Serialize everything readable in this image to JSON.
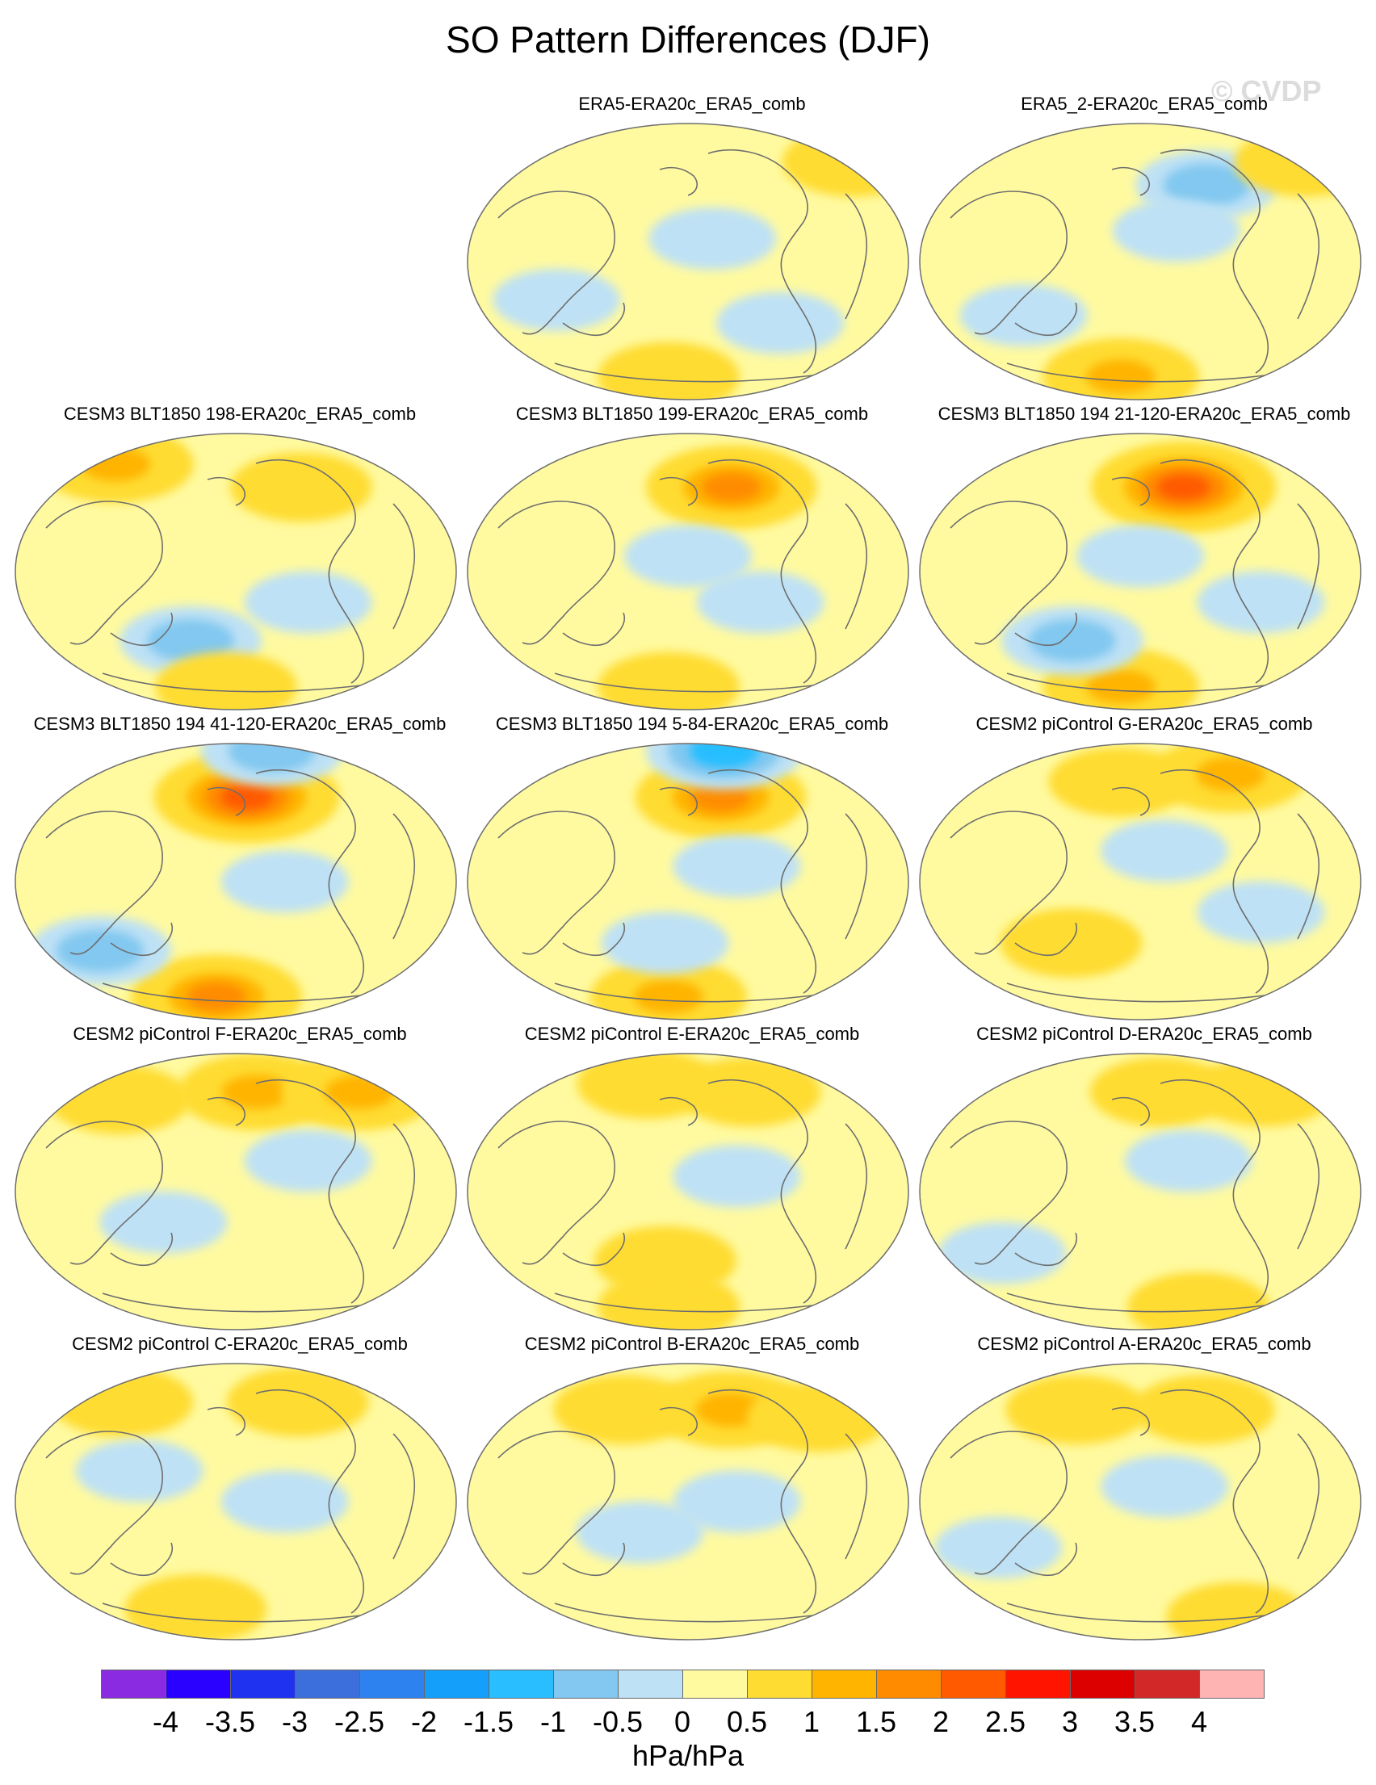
{
  "title": "SO Pattern Differences (DJF)",
  "watermark": "© CVDP",
  "colors": {
    "land_outline": "#6e6e6e",
    "map_border": "#6e6e6e"
  },
  "panels": [
    {
      "title": "ERA5-ERA20c_ERA5_comb",
      "blobs": [
        {
          "lon": 160,
          "lat": 65,
          "v": 1
        },
        {
          "lon": -20,
          "lat": -75,
          "v": 1
        },
        {
          "lon": 20,
          "lat": 15,
          "v": -0.5
        },
        {
          "lon": -110,
          "lat": -25,
          "v": -0.5
        },
        {
          "lon": 80,
          "lat": -40,
          "v": -0.5
        }
      ]
    },
    {
      "title": "ERA5_2-ERA20c_ERA5_comb",
      "blobs": [
        {
          "lon": 60,
          "lat": 50,
          "v": -1
        },
        {
          "lon": 160,
          "lat": 65,
          "v": 1
        },
        {
          "lon": -20,
          "lat": -75,
          "v": 1.5
        },
        {
          "lon": 30,
          "lat": 20,
          "v": -0.5
        },
        {
          "lon": -100,
          "lat": -35,
          "v": -0.5
        }
      ]
    },
    {
      "title": "CESM3 BLT1850 198-ERA20c_ERA5_comb",
      "blobs": [
        {
          "lon": -120,
          "lat": 70,
          "v": 1.5
        },
        {
          "lon": 60,
          "lat": 55,
          "v": 1
        },
        {
          "lon": -40,
          "lat": -45,
          "v": -1
        },
        {
          "lon": -10,
          "lat": -75,
          "v": 1
        },
        {
          "lon": 60,
          "lat": -20,
          "v": -0.5
        }
      ]
    },
    {
      "title": "CESM3 BLT1850 199-ERA20c_ERA5_comb",
      "blobs": [
        {
          "lon": 40,
          "lat": 55,
          "v": 2
        },
        {
          "lon": -20,
          "lat": -75,
          "v": 1
        },
        {
          "lon": 0,
          "lat": 10,
          "v": -0.5
        },
        {
          "lon": 60,
          "lat": -20,
          "v": -0.5
        }
      ]
    },
    {
      "title": "CESM3 BLT1850 194 21-120-ERA20c_ERA5_comb",
      "blobs": [
        {
          "lon": 40,
          "lat": 55,
          "v": 2.5
        },
        {
          "lon": -20,
          "lat": -75,
          "v": 1.5
        },
        {
          "lon": -60,
          "lat": -45,
          "v": -1
        },
        {
          "lon": 0,
          "lat": 10,
          "v": -0.5
        },
        {
          "lon": 100,
          "lat": -20,
          "v": -0.5
        }
      ]
    },
    {
      "title": "CESM3 BLT1850 194 41-120-ERA20c_ERA5_comb",
      "blobs": [
        {
          "lon": 10,
          "lat": 55,
          "v": 2.5
        },
        {
          "lon": -20,
          "lat": -75,
          "v": 2
        },
        {
          "lon": 40,
          "lat": 85,
          "v": -1
        },
        {
          "lon": -120,
          "lat": -45,
          "v": -1
        },
        {
          "lon": 40,
          "lat": 0,
          "v": -0.5
        }
      ]
    },
    {
      "title": "CESM3 BLT1850 194 5-84-ERA20c_ERA5_comb",
      "blobs": [
        {
          "lon": 30,
          "lat": 55,
          "v": 2
        },
        {
          "lon": -20,
          "lat": -75,
          "v": 1.5
        },
        {
          "lon": 40,
          "lat": 85,
          "v": -1.5
        },
        {
          "lon": -20,
          "lat": -40,
          "v": -0.5
        },
        {
          "lon": 40,
          "lat": 10,
          "v": -0.5
        }
      ]
    },
    {
      "title": "CESM2 piControl G-ERA20c_ERA5_comb",
      "blobs": [
        {
          "lon": 90,
          "lat": 70,
          "v": 1.5
        },
        {
          "lon": -20,
          "lat": 65,
          "v": 1
        },
        {
          "lon": 20,
          "lat": 20,
          "v": -0.5
        },
        {
          "lon": -60,
          "lat": -40,
          "v": 1
        },
        {
          "lon": 100,
          "lat": -20,
          "v": -0.5
        }
      ]
    },
    {
      "title": "CESM2 piControl F-ERA20c_ERA5_comb",
      "blobs": [
        {
          "lon": 20,
          "lat": 65,
          "v": 1.5
        },
        {
          "lon": 120,
          "lat": 65,
          "v": 1.5
        },
        {
          "lon": -110,
          "lat": 60,
          "v": 1
        },
        {
          "lon": 60,
          "lat": 20,
          "v": -0.5
        },
        {
          "lon": -60,
          "lat": -20,
          "v": -0.5
        }
      ]
    },
    {
      "title": "CESM2 piControl E-ERA20c_ERA5_comb",
      "blobs": [
        {
          "lon": 60,
          "lat": 65,
          "v": 1
        },
        {
          "lon": -40,
          "lat": 70,
          "v": 1
        },
        {
          "lon": -20,
          "lat": -75,
          "v": 1
        },
        {
          "lon": -20,
          "lat": -45,
          "v": 1
        },
        {
          "lon": 40,
          "lat": 10,
          "v": -0.5
        }
      ]
    },
    {
      "title": "CESM2 piControl D-ERA20c_ERA5_comb",
      "blobs": [
        {
          "lon": 20,
          "lat": 65,
          "v": 1
        },
        {
          "lon": 120,
          "lat": 65,
          "v": 1
        },
        {
          "lon": 60,
          "lat": -75,
          "v": 1
        },
        {
          "lon": 40,
          "lat": 20,
          "v": -0.5
        },
        {
          "lon": -120,
          "lat": -40,
          "v": -0.5
        }
      ]
    },
    {
      "title": "CESM2 piControl C-ERA20c_ERA5_comb",
      "blobs": [
        {
          "lon": -110,
          "lat": 65,
          "v": 1
        },
        {
          "lon": 60,
          "lat": 65,
          "v": 1
        },
        {
          "lon": -40,
          "lat": -70,
          "v": 1
        },
        {
          "lon": 40,
          "lat": 0,
          "v": -0.5
        },
        {
          "lon": -80,
          "lat": 20,
          "v": -0.5
        }
      ]
    },
    {
      "title": "CESM2 piControl B-ERA20c_ERA5_comb",
      "blobs": [
        {
          "lon": -60,
          "lat": 60,
          "v": 1
        },
        {
          "lon": 40,
          "lat": 60,
          "v": 1.5
        },
        {
          "lon": 120,
          "lat": 55,
          "v": 1
        },
        {
          "lon": 40,
          "lat": 0,
          "v": -0.5
        },
        {
          "lon": -40,
          "lat": -20,
          "v": -0.5
        }
      ]
    },
    {
      "title": "CESM2 piControl A-ERA20c_ERA5_comb",
      "blobs": [
        {
          "lon": -60,
          "lat": 60,
          "v": 1
        },
        {
          "lon": 60,
          "lat": 60,
          "v": 1
        },
        {
          "lon": 100,
          "lat": -75,
          "v": 1
        },
        {
          "lon": 20,
          "lat": 10,
          "v": -0.5
        },
        {
          "lon": -120,
          "lat": -30,
          "v": -0.5
        }
      ]
    }
  ],
  "colorbar": {
    "colors": [
      "#8a2be2",
      "#2a00ff",
      "#1e32f0",
      "#3c6edc",
      "#2d82f0",
      "#14a0fa",
      "#28beff",
      "#82c8f0",
      "#bee1f5",
      "#fffaa0",
      "#ffdc32",
      "#ffb400",
      "#ff8c00",
      "#ff5a00",
      "#ff1400",
      "#dc0000",
      "#d22828",
      "#ffb4b4"
    ],
    "ticks": [
      "-4",
      "-3.5",
      "-3",
      "-2.5",
      "-2",
      "-1.5",
      "-1",
      "-0.5",
      "0",
      "0.5",
      "1",
      "1.5",
      "2",
      "2.5",
      "3",
      "3.5",
      "4"
    ],
    "units": "hPa/hPa"
  }
}
